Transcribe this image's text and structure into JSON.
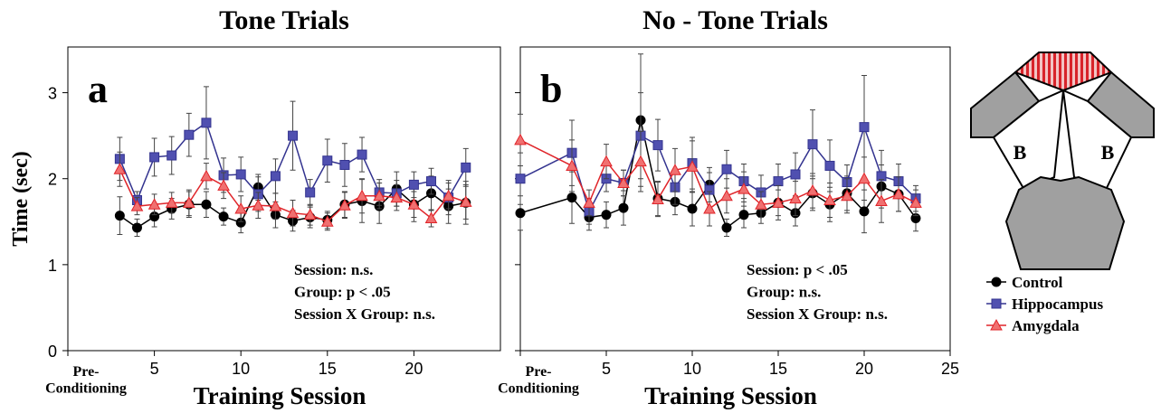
{
  "chart_data": [
    {
      "type": "line",
      "title": "Tone Trials",
      "panel_label": "a",
      "y_label": "Time (sec)",
      "x_label": "Training Session",
      "x": [
        3,
        4,
        5,
        6,
        7,
        8,
        9,
        10,
        11,
        12,
        13,
        14,
        15,
        16,
        17,
        18,
        19,
        20,
        21,
        22,
        23
      ],
      "series": [
        {
          "color": "#000000",
          "marker": "circle",
          "values": [
            1.57,
            1.43,
            1.56,
            1.65,
            1.7,
            1.7,
            1.56,
            1.49,
            1.9,
            1.58,
            1.51,
            1.55,
            1.52,
            1.7,
            1.74,
            1.68,
            1.88,
            1.7,
            1.83,
            1.68,
            1.72
          ],
          "errors": [
            0.22,
            0.1,
            0.12,
            0.12,
            0.15,
            0.15,
            0.1,
            0.12,
            0.15,
            0.15,
            0.12,
            0.12,
            0.1,
            0.15,
            0.25,
            0.2,
            0.2,
            0.2,
            0.2,
            0.2,
            0.25
          ]
        },
        {
          "color": "#33338f",
          "marker": "square",
          "values": [
            2.23,
            1.75,
            2.25,
            2.27,
            2.51,
            2.65,
            2.04,
            2.05,
            1.82,
            2.03,
            2.5,
            1.84,
            2.21,
            2.16,
            2.28,
            1.84,
            1.83,
            1.93,
            1.97,
            1.78,
            2.13
          ],
          "errors": [
            0.25,
            0.1,
            0.22,
            0.22,
            0.25,
            0.42,
            0.2,
            0.2,
            0.2,
            0.2,
            0.4,
            0.15,
            0.25,
            0.25,
            0.2,
            0.15,
            0.15,
            0.15,
            0.15,
            0.2,
            0.22
          ]
        },
        {
          "color": "#e0252a",
          "marker": "triangle",
          "values": [
            2.11,
            1.68,
            1.7,
            1.72,
            1.72,
            2.03,
            1.92,
            1.65,
            1.69,
            1.68,
            1.6,
            1.58,
            1.5,
            1.69,
            1.8,
            1.8,
            1.78,
            1.7,
            1.54,
            1.8,
            1.73
          ],
          "errors": [
            0.2,
            0.1,
            0.12,
            0.12,
            0.15,
            0.15,
            0.15,
            0.15,
            0.15,
            0.15,
            0.15,
            0.12,
            0.1,
            0.15,
            0.2,
            0.15,
            0.15,
            0.15,
            0.1,
            0.15,
            0.2
          ]
        }
      ],
      "xlim": [
        0,
        25
      ],
      "xticks": [
        {
          "value": 0,
          "label": "Pre-\nConditioning"
        },
        5,
        10,
        15,
        20
      ],
      "ylim": [
        0,
        3.5
      ],
      "yticks": [
        0,
        1,
        2,
        3
      ],
      "annotations": [
        "Session: n.s.",
        "Group: p < .05",
        "Session X Group: n.s."
      ]
    },
    {
      "type": "line",
      "title": "No - Tone Trials",
      "panel_label": "b",
      "x_label": "Training Session",
      "x": [
        0,
        3,
        4,
        5,
        6,
        7,
        8,
        9,
        10,
        11,
        12,
        13,
        14,
        15,
        16,
        17,
        18,
        19,
        20,
        21,
        22,
        23
      ],
      "series": [
        {
          "name": "Control",
          "color": "#000000",
          "marker": "circle",
          "values": [
            1.6,
            1.78,
            1.55,
            1.58,
            1.66,
            2.68,
            1.77,
            1.73,
            1.65,
            1.93,
            1.43,
            1.58,
            1.6,
            1.72,
            1.6,
            1.83,
            1.7,
            1.83,
            1.62,
            1.91,
            1.82,
            1.54
          ],
          "errors": [
            0.2,
            0.3,
            0.15,
            0.15,
            0.2,
            0.77,
            0.2,
            0.15,
            0.2,
            0.2,
            0.1,
            0.15,
            0.12,
            0.15,
            0.15,
            0.2,
            0.2,
            0.2,
            0.25,
            0.25,
            0.2,
            0.15
          ]
        },
        {
          "name": "Hippocampus",
          "color": "#33338f",
          "marker": "square",
          "values": [
            2.0,
            2.3,
            1.62,
            2.0,
            1.95,
            2.5,
            2.39,
            1.9,
            2.18,
            1.87,
            2.11,
            1.97,
            1.84,
            1.97,
            2.05,
            2.4,
            2.15,
            1.96,
            2.6,
            2.03,
            1.97,
            1.77
          ],
          "errors": [
            0.3,
            0.38,
            0.15,
            0.15,
            0.15,
            0.5,
            0.3,
            0.2,
            0.3,
            0.2,
            0.22,
            0.2,
            0.2,
            0.2,
            0.25,
            0.4,
            0.3,
            0.2,
            0.6,
            0.3,
            0.2,
            0.15
          ]
        },
        {
          "name": "Amygdala",
          "color": "#e0252a",
          "marker": "triangle",
          "values": [
            2.45,
            2.15,
            1.72,
            2.2,
            1.95,
            2.2,
            1.76,
            2.1,
            2.14,
            1.65,
            1.8,
            1.88,
            1.7,
            1.72,
            1.77,
            1.86,
            1.75,
            1.8,
            2.0,
            1.74,
            1.82,
            1.72
          ],
          "errors": [
            0.3,
            0.3,
            0.15,
            0.2,
            0.15,
            0.35,
            0.2,
            0.25,
            0.3,
            0.2,
            0.2,
            0.2,
            0.15,
            0.2,
            0.2,
            0.2,
            0.2,
            0.2,
            0.25,
            0.25,
            0.2,
            0.15
          ]
        }
      ],
      "xlim": [
        0,
        25
      ],
      "xticks": [
        {
          "value": 0,
          "label": "Pre-\nConditioning"
        },
        5,
        10,
        15,
        20,
        25
      ],
      "ylim": [
        0,
        3.5
      ],
      "legend": "right",
      "annotations": [
        "Session: p < .05",
        "Group: n.s.",
        "Session X Group: n.s."
      ]
    }
  ],
  "diagram": {
    "labels": [
      "B",
      "B"
    ]
  }
}
